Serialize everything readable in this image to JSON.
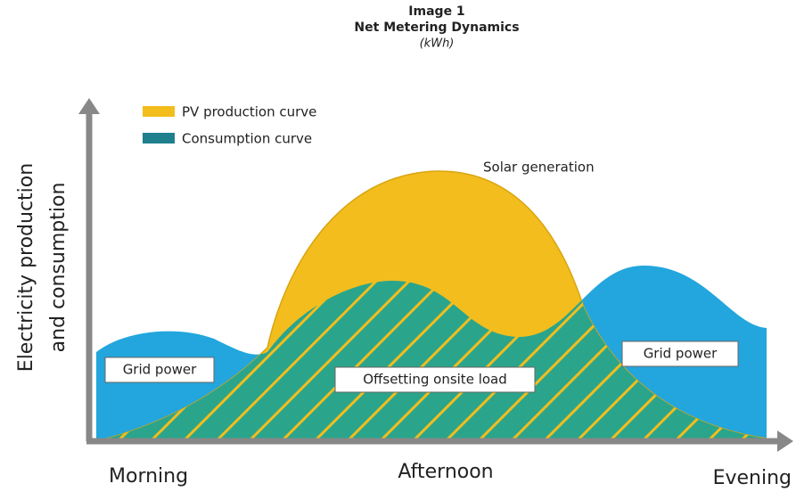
{
  "header": {
    "label": "Image 1",
    "title": "Net Metering Dynamics",
    "unit": "(kWh)"
  },
  "legend": [
    {
      "label": "PV production curve",
      "color": "#f2bd1d"
    },
    {
      "label": "Consumption curve",
      "color": "#1f7f8c"
    }
  ],
  "annotations": {
    "solar": "Solar generation",
    "grid_left": "Grid power",
    "offset": "Offsetting onsite load",
    "grid_right": "Grid power"
  },
  "y_axis": [
    "Electricity production",
    "and consumption"
  ],
  "x_axis": [
    "Morning",
    "Afternoon",
    "Evening"
  ]
}
